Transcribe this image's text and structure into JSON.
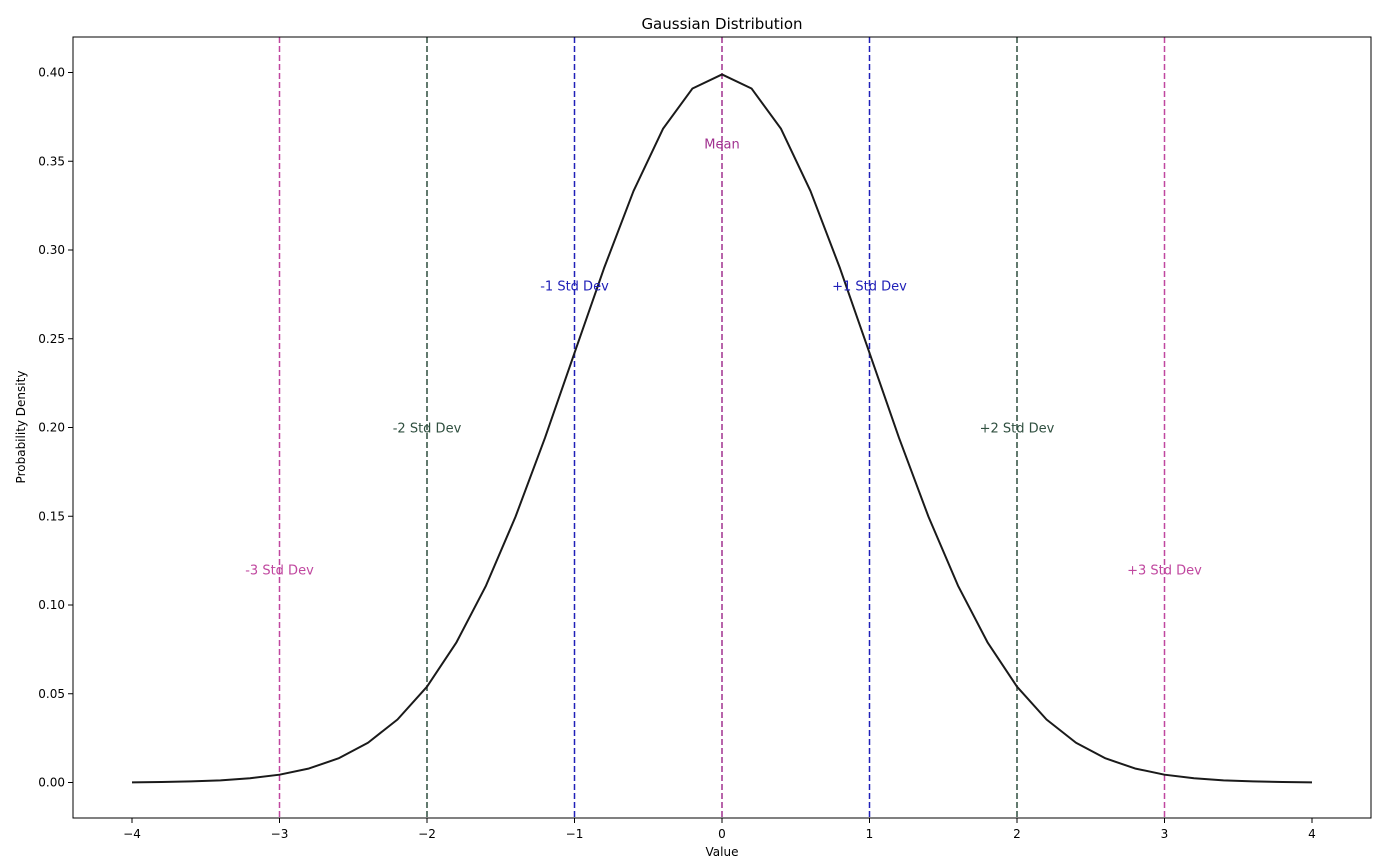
{
  "chart_data": {
    "type": "line",
    "title": "Gaussian Distribution",
    "xlabel": "Value",
    "ylabel": "Probability Density",
    "xlim": [
      -4.4,
      4.4
    ],
    "ylim": [
      -0.02,
      0.42
    ],
    "x_ticks": [
      -4,
      -3,
      -2,
      -1,
      0,
      1,
      2,
      3,
      4
    ],
    "x_tick_labels": [
      "−4",
      "−3",
      "−2",
      "−1",
      "0",
      "1",
      "2",
      "3",
      "4"
    ],
    "y_ticks": [
      0.0,
      0.05,
      0.1,
      0.15,
      0.2,
      0.25,
      0.3,
      0.35,
      0.4
    ],
    "y_tick_labels": [
      "0.00",
      "0.05",
      "0.10",
      "0.15",
      "0.20",
      "0.25",
      "0.30",
      "0.35",
      "0.40"
    ],
    "grid": false,
    "series": [
      {
        "color": "#1a1a1a",
        "x": [
          -4.0,
          -3.8,
          -3.6,
          -3.4,
          -3.2,
          -3.0,
          -2.8,
          -2.6,
          -2.4,
          -2.2,
          -2.0,
          -1.8,
          -1.6,
          -1.4,
          -1.2,
          -1.0,
          -0.8,
          -0.6,
          -0.4,
          -0.2,
          0.0,
          0.2,
          0.4,
          0.6,
          0.8,
          1.0,
          1.2,
          1.4,
          1.6,
          1.8,
          2.0,
          2.2,
          2.4,
          2.6,
          2.8,
          3.0,
          3.2,
          3.4,
          3.6,
          3.8,
          4.0
        ],
        "y": [
          0.0001,
          0.0003,
          0.0006,
          0.0012,
          0.0024,
          0.0044,
          0.0079,
          0.0136,
          0.0224,
          0.0355,
          0.054,
          0.079,
          0.1109,
          0.1497,
          0.1942,
          0.242,
          0.2897,
          0.3332,
          0.3683,
          0.391,
          0.3989,
          0.391,
          0.3683,
          0.3332,
          0.2897,
          0.242,
          0.1942,
          0.1497,
          0.1109,
          0.079,
          0.054,
          0.0355,
          0.0224,
          0.0136,
          0.0079,
          0.0044,
          0.0024,
          0.0012,
          0.0006,
          0.0003,
          0.0001
        ]
      }
    ],
    "vlines": [
      {
        "x": -3,
        "color": "#c0479f",
        "label": "-3 Std Dev",
        "label_y": 0.12
      },
      {
        "x": -2,
        "color": "#2f4f3f",
        "label": "-2 Std Dev",
        "label_y": 0.2
      },
      {
        "x": -1,
        "color": "#2020b8",
        "label": "-1 Std Dev",
        "label_y": 0.28
      },
      {
        "x": 0,
        "color": "#a0308f",
        "label": "Mean",
        "label_y": 0.36
      },
      {
        "x": 1,
        "color": "#2020b8",
        "label": "+1 Std Dev",
        "label_y": 0.28
      },
      {
        "x": 2,
        "color": "#2f4f3f",
        "label": "+2 Std Dev",
        "label_y": 0.2
      },
      {
        "x": 3,
        "color": "#c0479f",
        "label": "+3 Std Dev",
        "label_y": 0.12
      }
    ]
  }
}
